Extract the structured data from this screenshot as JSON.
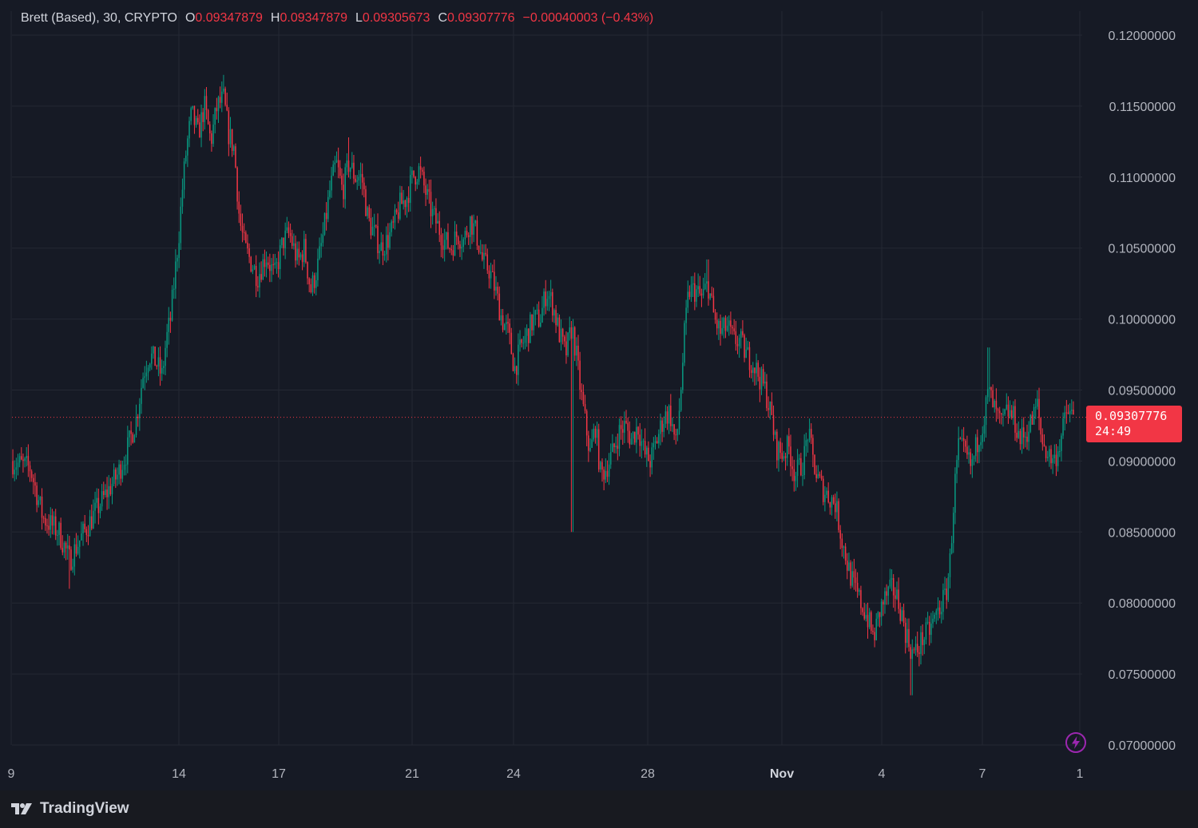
{
  "legend": {
    "symbol": "Brett (Based), 30, CRYPTO",
    "open_key": "O",
    "open": "0.09347879",
    "high_key": "H",
    "high": "0.09347879",
    "low_key": "L",
    "low": "0.09305673",
    "close_key": "C",
    "close": "0.09307776",
    "change": "−0.00040003 (−0.43%)"
  },
  "last_price": {
    "price": "0.09307776",
    "countdown": "24:49"
  },
  "brand": {
    "name": "TradingView"
  },
  "icons": {
    "brand": "tradingview-logo-icon",
    "alert": "lightning-icon"
  },
  "colors": {
    "background": "#161a25",
    "grid": "#242833",
    "text": "#b2b5be",
    "up": "#089981",
    "down": "#f23645",
    "price_line": "#f23645"
  },
  "chart_data": {
    "type": "candlestick",
    "interval": "30",
    "ylim": [
      0.07,
      0.12
    ],
    "y_ticks": [
      "0.12000000",
      "0.11500000",
      "0.11000000",
      "0.10500000",
      "0.10000000",
      "0.09500000",
      "0.09000000",
      "0.08500000",
      "0.08000000",
      "0.07500000",
      "0.07000000"
    ],
    "x_ticks": [
      "9",
      "14",
      "17",
      "21",
      "24",
      "28",
      "Nov",
      "4",
      "7",
      "1"
    ],
    "grid": true,
    "last_close": 0.09307776,
    "price_path": [
      [
        0,
        0.09
      ],
      [
        0.018,
        0.0895
      ],
      [
        0.03,
        0.086
      ],
      [
        0.045,
        0.085
      ],
      [
        0.055,
        0.083
      ],
      [
        0.065,
        0.0845
      ],
      [
        0.08,
        0.0865
      ],
      [
        0.092,
        0.088
      ],
      [
        0.1,
        0.089
      ],
      [
        0.108,
        0.0905
      ],
      [
        0.118,
        0.093
      ],
      [
        0.124,
        0.096
      ],
      [
        0.13,
        0.0975
      ],
      [
        0.136,
        0.097
      ],
      [
        0.142,
        0.096
      ],
      [
        0.146,
        0.0985
      ],
      [
        0.15,
        0.1
      ],
      [
        0.154,
        0.103
      ],
      [
        0.158,
        0.106
      ],
      [
        0.161,
        0.109
      ],
      [
        0.165,
        0.112
      ],
      [
        0.17,
        0.1145
      ],
      [
        0.176,
        0.113
      ],
      [
        0.182,
        0.115
      ],
      [
        0.188,
        0.1125
      ],
      [
        0.194,
        0.115
      ],
      [
        0.2,
        0.1155
      ],
      [
        0.205,
        0.113
      ],
      [
        0.21,
        0.112
      ],
      [
        0.215,
        0.107
      ],
      [
        0.22,
        0.105
      ],
      [
        0.226,
        0.104
      ],
      [
        0.232,
        0.103
      ],
      [
        0.24,
        0.1045
      ],
      [
        0.248,
        0.103
      ],
      [
        0.256,
        0.1055
      ],
      [
        0.262,
        0.106
      ],
      [
        0.27,
        0.104
      ],
      [
        0.276,
        0.105
      ],
      [
        0.282,
        0.102
      ],
      [
        0.288,
        0.1035
      ],
      [
        0.294,
        0.106
      ],
      [
        0.3,
        0.109
      ],
      [
        0.306,
        0.111
      ],
      [
        0.312,
        0.109
      ],
      [
        0.318,
        0.111
      ],
      [
        0.324,
        0.11
      ],
      [
        0.33,
        0.11
      ],
      [
        0.336,
        0.107
      ],
      [
        0.342,
        0.106
      ],
      [
        0.348,
        0.105
      ],
      [
        0.354,
        0.1055
      ],
      [
        0.36,
        0.1065
      ],
      [
        0.366,
        0.108
      ],
      [
        0.372,
        0.1085
      ],
      [
        0.378,
        0.11
      ],
      [
        0.384,
        0.1105
      ],
      [
        0.39,
        0.109
      ],
      [
        0.396,
        0.1075
      ],
      [
        0.402,
        0.1065
      ],
      [
        0.408,
        0.1055
      ],
      [
        0.414,
        0.105
      ],
      [
        0.42,
        0.106
      ],
      [
        0.426,
        0.1055
      ],
      [
        0.432,
        0.107
      ],
      [
        0.438,
        0.106
      ],
      [
        0.444,
        0.104
      ],
      [
        0.45,
        0.1035
      ],
      [
        0.456,
        0.102
      ],
      [
        0.462,
        0.1
      ],
      [
        0.468,
        0.099
      ],
      [
        0.474,
        0.0965
      ],
      [
        0.48,
        0.098
      ],
      [
        0.486,
        0.099
      ],
      [
        0.492,
        0.1
      ],
      [
        0.498,
        0.1
      ],
      [
        0.504,
        0.102
      ],
      [
        0.51,
        0.101
      ],
      [
        0.516,
        0.099
      ],
      [
        0.522,
        0.0975
      ],
      [
        0.528,
        0.0995
      ],
      [
        0.532,
        0.0975
      ],
      [
        0.536,
        0.095
      ],
      [
        0.54,
        0.093
      ],
      [
        0.545,
        0.0905
      ],
      [
        0.55,
        0.0925
      ],
      [
        0.555,
        0.089
      ],
      [
        0.56,
        0.0895
      ],
      [
        0.566,
        0.0905
      ],
      [
        0.572,
        0.092
      ],
      [
        0.578,
        0.0925
      ],
      [
        0.584,
        0.0915
      ],
      [
        0.59,
        0.0925
      ],
      [
        0.596,
        0.0905
      ],
      [
        0.602,
        0.09
      ],
      [
        0.608,
        0.0915
      ],
      [
        0.614,
        0.093
      ],
      [
        0.62,
        0.0935
      ],
      [
        0.626,
        0.091
      ],
      [
        0.63,
        0.0945
      ],
      [
        0.634,
        0.099
      ],
      [
        0.638,
        0.102
      ],
      [
        0.644,
        0.102
      ],
      [
        0.65,
        0.1015
      ],
      [
        0.656,
        0.1025
      ],
      [
        0.662,
        0.1
      ],
      [
        0.668,
        0.099
      ],
      [
        0.674,
        0.0995
      ],
      [
        0.68,
        0.0985
      ],
      [
        0.686,
        0.0985
      ],
      [
        0.692,
        0.0975
      ],
      [
        0.698,
        0.097
      ],
      [
        0.704,
        0.096
      ],
      [
        0.71,
        0.095
      ],
      [
        0.716,
        0.093
      ],
      [
        0.72,
        0.091
      ],
      [
        0.726,
        0.0905
      ],
      [
        0.732,
        0.091
      ],
      [
        0.738,
        0.089
      ],
      [
        0.742,
        0.0895
      ],
      [
        0.746,
        0.09
      ],
      [
        0.75,
        0.092
      ],
      [
        0.754,
        0.0905
      ],
      [
        0.758,
        0.089
      ],
      [
        0.764,
        0.088
      ],
      [
        0.77,
        0.0875
      ],
      [
        0.776,
        0.087
      ],
      [
        0.782,
        0.0845
      ],
      [
        0.788,
        0.0825
      ],
      [
        0.794,
        0.081
      ],
      [
        0.8,
        0.08
      ],
      [
        0.806,
        0.079
      ],
      [
        0.812,
        0.0775
      ],
      [
        0.818,
        0.0795
      ],
      [
        0.824,
        0.0805
      ],
      [
        0.83,
        0.081
      ],
      [
        0.836,
        0.08
      ],
      [
        0.842,
        0.078
      ],
      [
        0.848,
        0.0765
      ],
      [
        0.852,
        0.0765
      ],
      [
        0.858,
        0.0775
      ],
      [
        0.864,
        0.078
      ],
      [
        0.87,
        0.079
      ],
      [
        0.876,
        0.08
      ],
      [
        0.88,
        0.0805
      ],
      [
        0.884,
        0.083
      ],
      [
        0.888,
        0.088
      ],
      [
        0.892,
        0.091
      ],
      [
        0.898,
        0.0905
      ],
      [
        0.904,
        0.0895
      ],
      [
        0.91,
        0.0915
      ],
      [
        0.916,
        0.093
      ],
      [
        0.92,
        0.095
      ],
      [
        0.926,
        0.0935
      ],
      [
        0.932,
        0.0925
      ],
      [
        0.938,
        0.0935
      ],
      [
        0.944,
        0.093
      ],
      [
        0.95,
        0.0915
      ],
      [
        0.956,
        0.092
      ],
      [
        0.962,
        0.093
      ],
      [
        0.966,
        0.094
      ],
      [
        0.97,
        0.0915
      ],
      [
        0.976,
        0.0905
      ],
      [
        0.982,
        0.09
      ],
      [
        0.988,
        0.0915
      ],
      [
        0.994,
        0.0935
      ],
      [
        1.0,
        0.0931
      ]
    ],
    "key_lows": [
      [
        0.055,
        0.081
      ],
      [
        0.528,
        0.085
      ],
      [
        0.848,
        0.0735
      ]
    ],
    "key_highs": [
      [
        0.2,
        0.1172
      ],
      [
        0.318,
        0.1128
      ],
      [
        0.656,
        0.1042
      ],
      [
        0.92,
        0.098
      ]
    ]
  }
}
